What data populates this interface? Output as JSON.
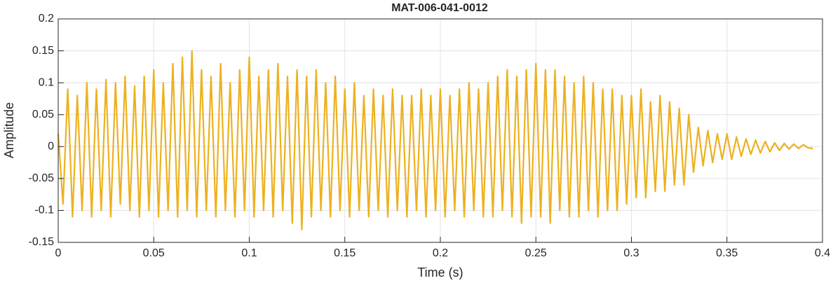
{
  "chart_data": {
    "type": "line",
    "title": "MAT-006-041-0012",
    "x_label": "Time (s)",
    "y_label": "Amplitude",
    "xlim": [
      0,
      0.4
    ],
    "xticks": [
      0,
      0.05,
      0.1,
      0.15,
      0.2,
      0.25,
      0.3,
      0.35,
      0.4
    ],
    "ylim": [
      -0.15,
      0.2
    ],
    "yticks": [
      -0.15,
      -0.1,
      -0.05,
      0,
      0.05,
      0.1,
      0.15,
      0.2
    ],
    "grid": true,
    "series": [
      {
        "color": "#edb120",
        "x": [
          0,
          0.0025,
          0.005,
          0.0075,
          0.01,
          0.0125,
          0.015,
          0.0175,
          0.02,
          0.0225,
          0.025,
          0.0275,
          0.03,
          0.0325,
          0.035,
          0.0375,
          0.04,
          0.0425,
          0.045,
          0.0475,
          0.05,
          0.0525,
          0.055,
          0.0575,
          0.06,
          0.0625,
          0.065,
          0.0675,
          0.07,
          0.0725,
          0.075,
          0.0775,
          0.08,
          0.0825,
          0.085,
          0.0875,
          0.09,
          0.0925,
          0.095,
          0.0975,
          0.1,
          0.1025,
          0.105,
          0.1075,
          0.11,
          0.1125,
          0.115,
          0.1175,
          0.12,
          0.1225,
          0.125,
          0.1275,
          0.13,
          0.1325,
          0.135,
          0.1375,
          0.14,
          0.1425,
          0.145,
          0.1475,
          0.15,
          0.1525,
          0.155,
          0.1575,
          0.16,
          0.1625,
          0.165,
          0.1675,
          0.17,
          0.1725,
          0.175,
          0.1775,
          0.18,
          0.1825,
          0.185,
          0.1875,
          0.19,
          0.1925,
          0.195,
          0.1975,
          0.2,
          0.2025,
          0.205,
          0.2075,
          0.21,
          0.2125,
          0.215,
          0.2175,
          0.22,
          0.2225,
          0.225,
          0.2275,
          0.23,
          0.2325,
          0.235,
          0.2375,
          0.24,
          0.2425,
          0.245,
          0.2475,
          0.25,
          0.2525,
          0.255,
          0.2575,
          0.26,
          0.2625,
          0.265,
          0.2675,
          0.27,
          0.2725,
          0.275,
          0.2775,
          0.28,
          0.2825,
          0.285,
          0.2875,
          0.29,
          0.2925,
          0.295,
          0.2975,
          0.3,
          0.3025,
          0.305,
          0.3075,
          0.31,
          0.3125,
          0.315,
          0.3175,
          0.32,
          0.3225,
          0.325,
          0.3275,
          0.33,
          0.3325,
          0.335,
          0.3375,
          0.34,
          0.3425,
          0.345,
          0.3475,
          0.35,
          0.3525,
          0.355,
          0.3575,
          0.36,
          0.3625,
          0.365,
          0.3675,
          0.37,
          0.3725,
          0.375,
          0.3775,
          0.38,
          0.3825,
          0.385,
          0.3875,
          0.39,
          0.3925,
          0.395
        ],
        "values": [
          0.02,
          -0.09,
          0.09,
          -0.11,
          0.08,
          -0.1,
          0.1,
          -0.11,
          0.09,
          -0.1,
          0.105,
          -0.11,
          0.1,
          -0.09,
          0.11,
          -0.1,
          0.095,
          -0.11,
          0.11,
          -0.1,
          0.12,
          -0.11,
          0.1,
          -0.1,
          0.13,
          -0.11,
          0.14,
          -0.1,
          0.15,
          -0.11,
          0.12,
          -0.1,
          0.11,
          -0.11,
          0.13,
          -0.1,
          0.1,
          -0.11,
          0.12,
          -0.1,
          0.14,
          -0.11,
          0.11,
          -0.1,
          0.12,
          -0.11,
          0.13,
          -0.1,
          0.11,
          -0.12,
          0.12,
          -0.13,
          0.11,
          -0.11,
          0.12,
          -0.1,
          0.1,
          -0.11,
          0.11,
          -0.1,
          0.09,
          -0.11,
          0.1,
          -0.1,
          0.08,
          -0.11,
          0.09,
          -0.1,
          0.08,
          -0.11,
          0.09,
          -0.1,
          0.08,
          -0.11,
          0.08,
          -0.1,
          0.09,
          -0.11,
          0.08,
          -0.1,
          0.09,
          -0.11,
          0.08,
          -0.1,
          0.09,
          -0.11,
          0.1,
          -0.1,
          0.09,
          -0.11,
          0.1,
          -0.11,
          0.11,
          -0.1,
          0.12,
          -0.11,
          0.11,
          -0.12,
          0.12,
          -0.11,
          0.13,
          -0.11,
          0.12,
          -0.12,
          0.12,
          -0.1,
          0.11,
          -0.11,
          0.1,
          -0.11,
          0.11,
          -0.1,
          0.1,
          -0.11,
          0.09,
          -0.1,
          0.09,
          -0.1,
          0.08,
          -0.09,
          0.08,
          -0.08,
          0.09,
          -0.08,
          0.07,
          -0.07,
          0.08,
          -0.07,
          0.07,
          -0.06,
          0.06,
          -0.06,
          0.05,
          -0.04,
          0.03,
          -0.03,
          0.025,
          -0.025,
          0.02,
          -0.02,
          0.02,
          -0.02,
          0.015,
          -0.015,
          0.012,
          -0.012,
          0.01,
          -0.01,
          0.008,
          -0.008,
          0.006,
          -0.006,
          0.005,
          -0.004,
          0.004,
          -0.003,
          0.003,
          -0.002,
          -0.003
        ]
      }
    ]
  }
}
